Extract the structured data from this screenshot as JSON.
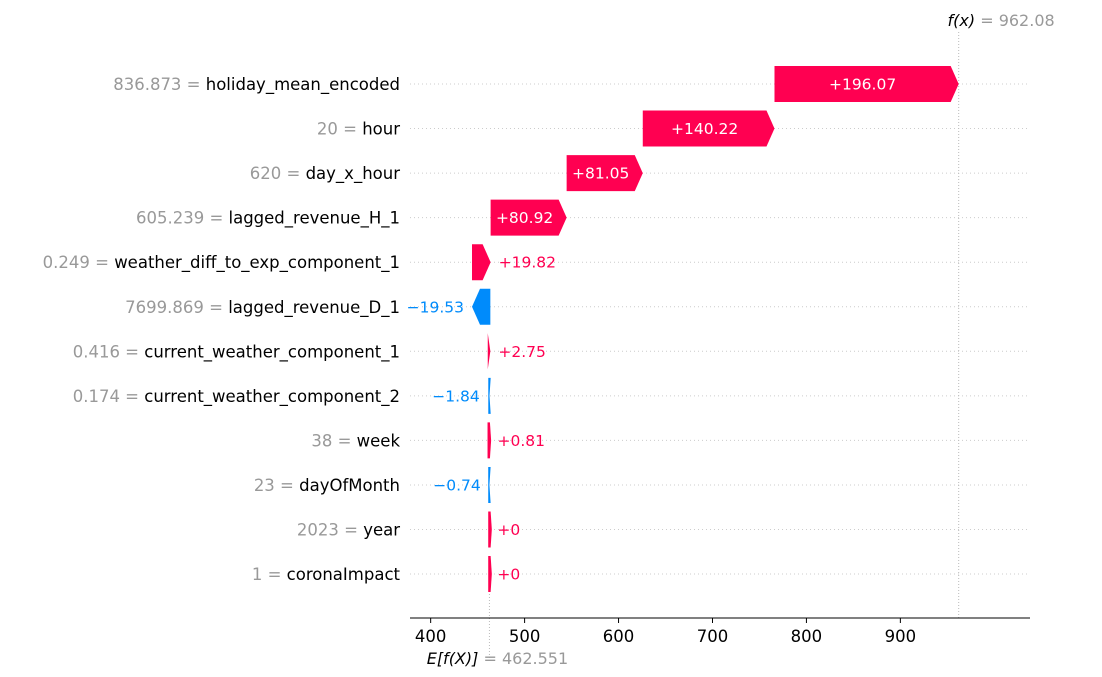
{
  "chart_data": {
    "type": "waterfall",
    "base_value": 462.551,
    "output_value": 962.08,
    "base_label": "E[f(X)]",
    "output_label": "f(x)",
    "base_value_text": "462.551",
    "output_value_text": "962.08",
    "xlim": [
      378,
      1038
    ],
    "xticks": [
      400,
      500,
      600,
      700,
      800,
      900
    ],
    "grid": "dotted horizontal lines per feature",
    "features": [
      {
        "value": "836.873",
        "name": "holiday_mean_encoded",
        "contribution": 196.07,
        "label": "+196.07"
      },
      {
        "value": "20",
        "name": "hour",
        "contribution": 140.22,
        "label": "+140.22"
      },
      {
        "value": "620",
        "name": "day_x_hour",
        "contribution": 81.05,
        "label": "+81.05"
      },
      {
        "value": "605.239",
        "name": "lagged_revenue_H_1",
        "contribution": 80.92,
        "label": "+80.92"
      },
      {
        "value": "0.249",
        "name": "weather_diff_to_exp_component_1",
        "contribution": 19.82,
        "label": "+19.82"
      },
      {
        "value": "7699.869",
        "name": "lagged_revenue_D_1",
        "contribution": -19.53,
        "label": "−19.53"
      },
      {
        "value": "0.416",
        "name": "current_weather_component_1",
        "contribution": 2.75,
        "label": "+2.75"
      },
      {
        "value": "0.174",
        "name": "current_weather_component_2",
        "contribution": -1.84,
        "label": "−1.84"
      },
      {
        "value": "38",
        "name": "week",
        "contribution": 0.81,
        "label": "+0.81"
      },
      {
        "value": "23",
        "name": "dayOfMonth",
        "contribution": -0.74,
        "label": "−0.74"
      },
      {
        "value": "2023",
        "name": "year",
        "contribution": 0,
        "label": "+0"
      },
      {
        "value": "1",
        "name": "coronaImpact",
        "contribution": 0,
        "label": "+0"
      }
    ]
  },
  "colors": {
    "positive": "#ff0051",
    "negative": "#008bfb",
    "feature_value": "#999999",
    "feature_name": "#000000",
    "inside_label": "#ffffff",
    "axis": "#000000",
    "grid": "#cccccc",
    "reference_line": "#bbbbbb"
  }
}
